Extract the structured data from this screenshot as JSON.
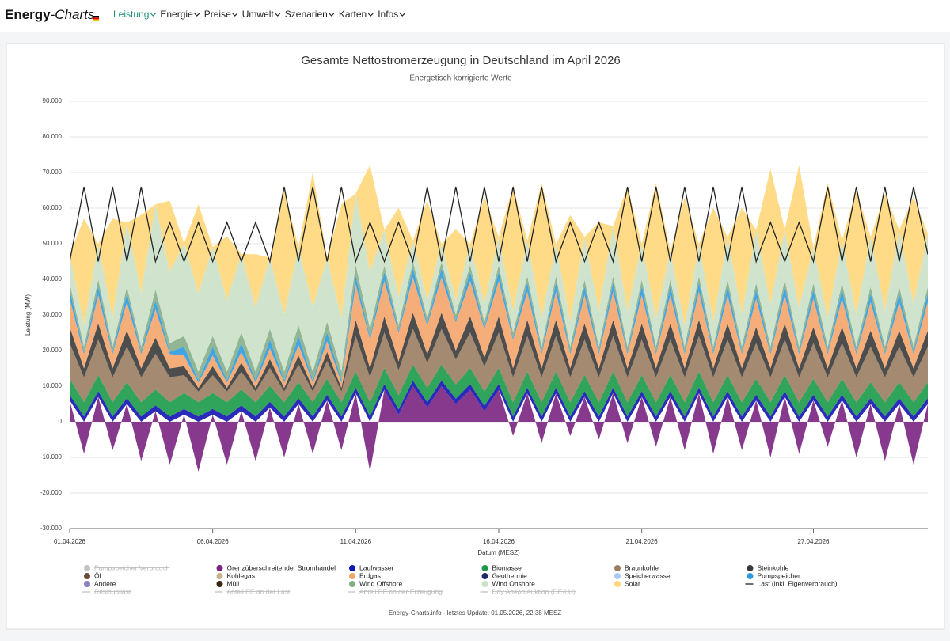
{
  "nav": {
    "logo_main": "Energy",
    "logo_italic": "-Charts",
    "items": [
      "Leistung",
      "Energie",
      "Preise",
      "Umwelt",
      "Szenarien",
      "Karten",
      "Infos"
    ],
    "active": 0
  },
  "chart_data": {
    "type": "stacked_area",
    "title": "Gesamte Nettostromerzeugung in Deutschland im April 2026",
    "subtitle": "Energetisch korrigierte Werte",
    "y_label": "Leistung (MW)",
    "x_label": "Datum (MESZ)",
    "footer": "Energy-Charts.info - letztes Update: 01.05.2026, 22:38 MESZ",
    "xlim": [
      0,
      30
    ],
    "xticks": [
      {
        "value": 0,
        "label": "01.04.2026"
      },
      {
        "value": 5,
        "label": "06.04.2026"
      },
      {
        "value": 10,
        "label": "11.04.2026"
      },
      {
        "value": 15,
        "label": "16.04.2026"
      },
      {
        "value": 20,
        "label": "21.04.2026"
      },
      {
        "value": 26,
        "label": "27.04.2026"
      }
    ],
    "ylim": [
      -30000,
      90000
    ],
    "yticks": [
      {
        "value": 90000,
        "label": "90.000"
      },
      {
        "value": 80000,
        "label": "80.000"
      },
      {
        "value": 70000,
        "label": "70.000"
      },
      {
        "value": 60000,
        "label": "60.000"
      },
      {
        "value": 50000,
        "label": "50.000"
      },
      {
        "value": 40000,
        "label": "40.000"
      },
      {
        "value": 30000,
        "label": "30.000"
      },
      {
        "value": 20000,
        "label": "20.000"
      },
      {
        "value": 10000,
        "label": "10.000"
      },
      0,
      {
        "value": -10000,
        "label": "-10.000"
      },
      {
        "value": -20000,
        "label": "-20.000"
      },
      {
        "value": -30000,
        "label": "-30.000"
      }
    ],
    "grid": true,
    "x": [
      0,
      0.5,
      1,
      1.5,
      2,
      2.5,
      3,
      3.5,
      4,
      4.5,
      5,
      5.5,
      6,
      6.5,
      7,
      7.5,
      8,
      8.5,
      9,
      9.5,
      10,
      10.5,
      11,
      11.5,
      12,
      12.5,
      13,
      13.5,
      14,
      14.5,
      15,
      15.5,
      16,
      16.5,
      17,
      17.5,
      18,
      18.5,
      19,
      19.5,
      20,
      20.5,
      21,
      21.5,
      22,
      22.5,
      23,
      23.5,
      24,
      24.5,
      25,
      25.5,
      26,
      26.5,
      27,
      27.5,
      28,
      28.5,
      29,
      29.5,
      30
    ],
    "series": [
      {
        "name": "Pumpspeicher Verbrauch",
        "color": "#c4c4c4",
        "visible": false
      },
      {
        "name": "Grenzüberschreitender Stromhandel",
        "color": "#7a2382",
        "values": [
          6000,
          -9000,
          7000,
          -8000,
          5000,
          -11000,
          3000,
          -12000,
          2000,
          -14000,
          2000,
          -12000,
          3000,
          -11000,
          4000,
          -10000,
          5000,
          -9000,
          6000,
          -8000,
          8000,
          -14000,
          9000,
          2000,
          10000,
          4000,
          10000,
          5000,
          9000,
          3000,
          9000,
          -4000,
          8000,
          -6000,
          8000,
          -4000,
          7000,
          -5000,
          8000,
          -6000,
          7000,
          -7000,
          7000,
          -8000,
          8000,
          -9000,
          7000,
          -8000,
          6000,
          -10000,
          7000,
          -9000,
          6000,
          -7000,
          6000,
          -10000,
          5000,
          -11000,
          5000,
          -12000,
          5000
        ]
      },
      {
        "name": "Laufwasser",
        "color": "#1414b4",
        "values": [
          1600,
          1500,
          1600,
          1500,
          1600,
          1500,
          1600,
          1500,
          1600,
          1500,
          1600,
          1500,
          1600,
          1500,
          1600,
          1500,
          1600,
          1500,
          1600,
          1500,
          1600,
          1500,
          1600,
          1500,
          1600,
          1500,
          1600,
          1500,
          1600,
          1500,
          1600,
          1500,
          1600,
          1500,
          1600,
          1500,
          1600,
          1500,
          1600,
          1500,
          1600,
          1500,
          1600,
          1500,
          1600,
          1500,
          1600,
          1500,
          1600,
          1500,
          1600,
          1500,
          1600,
          1500,
          1600,
          1500,
          1600,
          1500,
          1600,
          1500,
          1600
        ]
      },
      {
        "name": "Biomasse",
        "color": "#1a9a48",
        "values": [
          4500,
          4000,
          4500,
          4000,
          4500,
          4000,
          4500,
          4000,
          4500,
          4000,
          4500,
          4000,
          4500,
          4000,
          4500,
          4000,
          4500,
          4000,
          4500,
          4000,
          4500,
          4000,
          4500,
          4000,
          4500,
          4000,
          4500,
          4000,
          4500,
          4000,
          4500,
          4000,
          4500,
          4000,
          4500,
          4000,
          4500,
          4000,
          4500,
          4000,
          4500,
          4000,
          4500,
          4000,
          4500,
          4000,
          4500,
          4000,
          4500,
          4000,
          4500,
          4000,
          4500,
          4000,
          4500,
          4000,
          4500,
          4000,
          4500,
          4000,
          4500
        ]
      },
      {
        "name": "Braunkohle",
        "color": "#9a7d62",
        "values": [
          10000,
          7000,
          10000,
          7000,
          10000,
          7000,
          10000,
          7000,
          5000,
          3000,
          5000,
          3000,
          5000,
          3000,
          5000,
          3000,
          5000,
          3000,
          5000,
          3000,
          10000,
          7000,
          10000,
          7000,
          10000,
          7000,
          10000,
          7000,
          10000,
          7000,
          10000,
          7000,
          10000,
          7000,
          10000,
          7000,
          10000,
          7000,
          10000,
          7000,
          10000,
          7000,
          10000,
          7000,
          10000,
          7000,
          10000,
          7000,
          10000,
          7000,
          10000,
          7000,
          10000,
          7000,
          10000,
          7000,
          10000,
          7000,
          10000,
          7000,
          10000
        ]
      },
      {
        "name": "Steinkohle",
        "color": "#3a3a3a",
        "values": [
          4500,
          2500,
          4500,
          2500,
          4500,
          2500,
          4500,
          2500,
          2500,
          1000,
          2500,
          1000,
          2500,
          1000,
          2500,
          1000,
          2500,
          1000,
          2500,
          1000,
          4500,
          2500,
          4500,
          2500,
          4500,
          2500,
          4500,
          2500,
          4500,
          2500,
          4500,
          2500,
          4500,
          2500,
          4500,
          2500,
          4500,
          2500,
          4500,
          2500,
          4500,
          2500,
          4500,
          2500,
          4500,
          2500,
          4500,
          2500,
          4500,
          2500,
          4500,
          2500,
          4500,
          2500,
          4500,
          2500,
          4500,
          2500,
          4500,
          2500,
          4500
        ]
      },
      {
        "name": "Öl",
        "color": "#6b4a3a"
      },
      {
        "name": "Kohlegas",
        "color": "#c9b28f"
      },
      {
        "name": "Erdgas",
        "color": "#f4a56a",
        "values": [
          8000,
          4000,
          8000,
          4000,
          8000,
          4000,
          8000,
          4000,
          3000,
          1500,
          3000,
          1500,
          3000,
          1500,
          3000,
          1500,
          3000,
          1500,
          3000,
          1500,
          10000,
          8000,
          10000,
          8000,
          10000,
          8000,
          10000,
          8000,
          10000,
          8000,
          10000,
          8000,
          8000,
          4000,
          8000,
          4000,
          8000,
          4000,
          8000,
          4000,
          8000,
          4000,
          8000,
          4000,
          8000,
          4000,
          8000,
          4000,
          8000,
          4000,
          8000,
          4000,
          8000,
          4000,
          8000,
          4000,
          8000,
          4000,
          8000,
          4000,
          8000
        ]
      },
      {
        "name": "Geothermie",
        "color": "#1b2a6b"
      },
      {
        "name": "Speicherwasser",
        "color": "#a9c9f2"
      },
      {
        "name": "Pumpspeicher",
        "color": "#2c9be0",
        "values": [
          2500,
          600,
          2500,
          600,
          2500,
          600,
          2500,
          600,
          2500,
          600,
          2500,
          600,
          2500,
          600,
          2500,
          600,
          2500,
          600,
          2500,
          600,
          2500,
          600,
          2500,
          600,
          2500,
          600,
          2500,
          600,
          2500,
          600,
          2500,
          600,
          2500,
          600,
          2500,
          600,
          2500,
          600,
          2500,
          600,
          2500,
          600,
          2500,
          600,
          2500,
          600,
          2500,
          600,
          2500,
          600,
          2500,
          600,
          2500,
          600,
          2500,
          600,
          2500,
          600,
          2500,
          600,
          2500
        ]
      },
      {
        "name": "Andere",
        "color": "#8d7fc4"
      },
      {
        "name": "Müll",
        "color": "#3a2810"
      },
      {
        "name": "Wind Offshore",
        "color": "#86ad88",
        "values": [
          1800,
          1500,
          1800,
          1500,
          1800,
          1500,
          3000,
          2500,
          3000,
          2500,
          3000,
          2500,
          3000,
          2500,
          3000,
          2500,
          3000,
          2500,
          3000,
          2500,
          3000,
          2500,
          1800,
          1500,
          1800,
          1500,
          1800,
          1500,
          1800,
          1500,
          1800,
          1500,
          1800,
          1500,
          1800,
          1500,
          1800,
          1500,
          1800,
          1500,
          1800,
          1500,
          1800,
          1500,
          1800,
          1500,
          1800,
          1500,
          1800,
          1500,
          1800,
          1500,
          1800,
          1500,
          1800,
          1500,
          1800,
          1500,
          1800,
          1500,
          1800
        ]
      },
      {
        "name": "Wind Onshore",
        "color": "#cbe0c6",
        "values": [
          8000,
          6000,
          10000,
          8000,
          18000,
          15000,
          24000,
          20000,
          26000,
          22000,
          25000,
          20000,
          22000,
          18000,
          20000,
          16000,
          22000,
          18000,
          18000,
          15000,
          20000,
          16000,
          10000,
          8000,
          6000,
          5000,
          5000,
          4000,
          6000,
          5000,
          8000,
          6000,
          10000,
          8000,
          9000,
          7000,
          12000,
          10000,
          14000,
          10000,
          10000,
          8000,
          8000,
          6000,
          9000,
          7000,
          12000,
          9000,
          15000,
          12000,
          14000,
          11000,
          10000,
          8000,
          12000,
          9000,
          14000,
          10000,
          16000,
          12000,
          15000
        ]
      },
      {
        "name": "Solar",
        "color": "#ffd77a",
        "values": [
          0,
          30000,
          0,
          28000,
          0,
          22000,
          0,
          20000,
          0,
          25000,
          0,
          18000,
          0,
          15000,
          0,
          35000,
          0,
          38000,
          0,
          32000,
          0,
          30000,
          0,
          25000,
          0,
          28000,
          0,
          20000,
          0,
          30000,
          0,
          35000,
          0,
          38000,
          0,
          30000,
          0,
          25000,
          0,
          35000,
          0,
          38000,
          0,
          36000,
          0,
          32000,
          0,
          30000,
          0,
          38000,
          0,
          40000,
          0,
          38000,
          0,
          35000,
          0,
          33000,
          0,
          30000,
          0
        ]
      },
      {
        "name": "Last (inkl. Eigenverbrauch)",
        "color": "#222222",
        "style": "line",
        "values": [
          45000,
          66000,
          45000,
          66000,
          45000,
          66000,
          45000,
          56000,
          45000,
          56000,
          45000,
          56000,
          45000,
          56000,
          45000,
          66000,
          45000,
          66000,
          45000,
          66000,
          45000,
          56000,
          45000,
          56000,
          45000,
          66000,
          45000,
          66000,
          45000,
          66000,
          45000,
          66000,
          45000,
          66000,
          45000,
          56000,
          45000,
          56000,
          45000,
          66000,
          45000,
          66000,
          45000,
          66000,
          45000,
          66000,
          45000,
          66000,
          45000,
          56000,
          45000,
          56000,
          45000,
          66000,
          45000,
          66000,
          45000,
          66000,
          45000,
          66000,
          47000
        ]
      },
      {
        "name": "Residuallast",
        "color": "#c4c4c4",
        "style": "line",
        "visible": false
      },
      {
        "name": "Anteil EE an der Last",
        "color": "#c4c4c4",
        "style": "line",
        "visible": false
      },
      {
        "name": "Anteil EE an der Erzeugung",
        "color": "#c4c4c4",
        "style": "line",
        "visible": false
      },
      {
        "name": "Day Ahead Auktion (DE-LU)",
        "color": "#c4c4c4",
        "style": "line",
        "visible": false
      }
    ]
  }
}
